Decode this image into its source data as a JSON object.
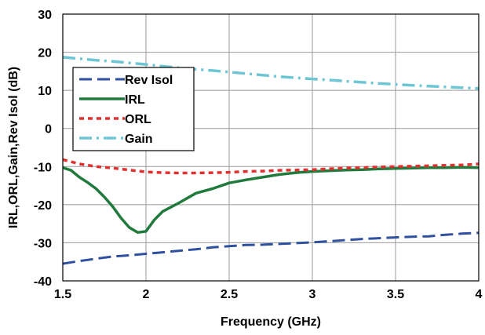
{
  "chart_data": {
    "type": "line",
    "title": "",
    "xlabel": "Frequency (GHz)",
    "ylabel": "IRL,ORL,Gain,Rev Isol (dB)",
    "xlim": [
      1.5,
      4
    ],
    "ylim": [
      -40,
      30
    ],
    "xticks": [
      1.5,
      2,
      2.5,
      3,
      3.5,
      4
    ],
    "xtick_labels": [
      "1.5",
      "2",
      "2.5",
      "3",
      "3.5",
      "4"
    ],
    "yticks": [
      -40,
      -30,
      -20,
      -10,
      0,
      10,
      20,
      30
    ],
    "ytick_labels": [
      "-40",
      "-30",
      "-20",
      "-10",
      "0",
      "10",
      "20",
      "30"
    ],
    "grid": true,
    "legend_position": "upper-left",
    "series": [
      {
        "name": "Rev Isol",
        "color": "#2f4f9f",
        "dash": "long-dash",
        "x": [
          1.5,
          1.6,
          1.7,
          1.8,
          1.9,
          2.0,
          2.1,
          2.2,
          2.3,
          2.4,
          2.5,
          2.6,
          2.7,
          2.8,
          2.9,
          3.0,
          3.1,
          3.2,
          3.3,
          3.4,
          3.5,
          3.6,
          3.7,
          3.8,
          3.9,
          4.0
        ],
        "y": [
          -35.5,
          -34.8,
          -34.2,
          -33.6,
          -33.3,
          -32.9,
          -32.5,
          -32.1,
          -31.7,
          -31.2,
          -30.9,
          -30.6,
          -30.5,
          -30.3,
          -30.1,
          -29.9,
          -29.6,
          -29.3,
          -29.0,
          -28.8,
          -28.6,
          -28.4,
          -28.3,
          -27.9,
          -27.6,
          -27.4
        ]
      },
      {
        "name": "IRL",
        "color": "#1f7a3c",
        "dash": "solid",
        "x": [
          1.5,
          1.55,
          1.6,
          1.65,
          1.7,
          1.75,
          1.8,
          1.85,
          1.9,
          1.95,
          2.0,
          2.05,
          2.1,
          2.2,
          2.3,
          2.4,
          2.5,
          2.6,
          2.7,
          2.8,
          2.9,
          3.0,
          3.1,
          3.2,
          3.3,
          3.4,
          3.5,
          3.6,
          3.7,
          3.8,
          3.9,
          4.0
        ],
        "y": [
          -10.3,
          -11.0,
          -12.8,
          -14.2,
          -15.8,
          -18.0,
          -20.5,
          -23.5,
          -26.0,
          -27.3,
          -27.0,
          -24.0,
          -21.8,
          -19.5,
          -17.0,
          -15.8,
          -14.3,
          -13.5,
          -12.8,
          -12.1,
          -11.6,
          -11.3,
          -11.1,
          -10.9,
          -10.8,
          -10.6,
          -10.5,
          -10.4,
          -10.3,
          -10.3,
          -10.2,
          -10.3
        ]
      },
      {
        "name": "ORL",
        "color": "#e03030",
        "dash": "short-dash",
        "x": [
          1.5,
          1.6,
          1.7,
          1.8,
          1.9,
          2.0,
          2.1,
          2.2,
          2.3,
          2.4,
          2.5,
          2.6,
          2.7,
          2.8,
          2.9,
          3.0,
          3.1,
          3.2,
          3.3,
          3.4,
          3.5,
          3.6,
          3.7,
          3.8,
          3.9,
          4.0
        ],
        "y": [
          -8.2,
          -9.3,
          -10.0,
          -10.4,
          -10.9,
          -11.4,
          -11.6,
          -11.7,
          -11.7,
          -11.6,
          -11.5,
          -11.3,
          -11.2,
          -11.0,
          -10.9,
          -10.8,
          -10.6,
          -10.4,
          -10.3,
          -10.1,
          -10.0,
          -9.9,
          -9.8,
          -9.7,
          -9.6,
          -9.3
        ]
      },
      {
        "name": "Gain",
        "color": "#6ec6d4",
        "dash": "dash-dot",
        "x": [
          1.5,
          1.6,
          1.7,
          1.8,
          1.9,
          2.0,
          2.1,
          2.2,
          2.3,
          2.4,
          2.5,
          2.6,
          2.7,
          2.8,
          2.9,
          3.0,
          3.1,
          3.2,
          3.3,
          3.4,
          3.5,
          3.6,
          3.7,
          3.8,
          3.9,
          4.0
        ],
        "y": [
          18.7,
          18.3,
          17.9,
          17.6,
          17.2,
          16.8,
          16.3,
          15.9,
          15.5,
          15.2,
          14.8,
          14.4,
          14.0,
          13.6,
          13.3,
          13.0,
          12.7,
          12.4,
          12.1,
          11.8,
          11.6,
          11.3,
          11.1,
          10.9,
          10.7,
          10.5
        ]
      }
    ]
  }
}
